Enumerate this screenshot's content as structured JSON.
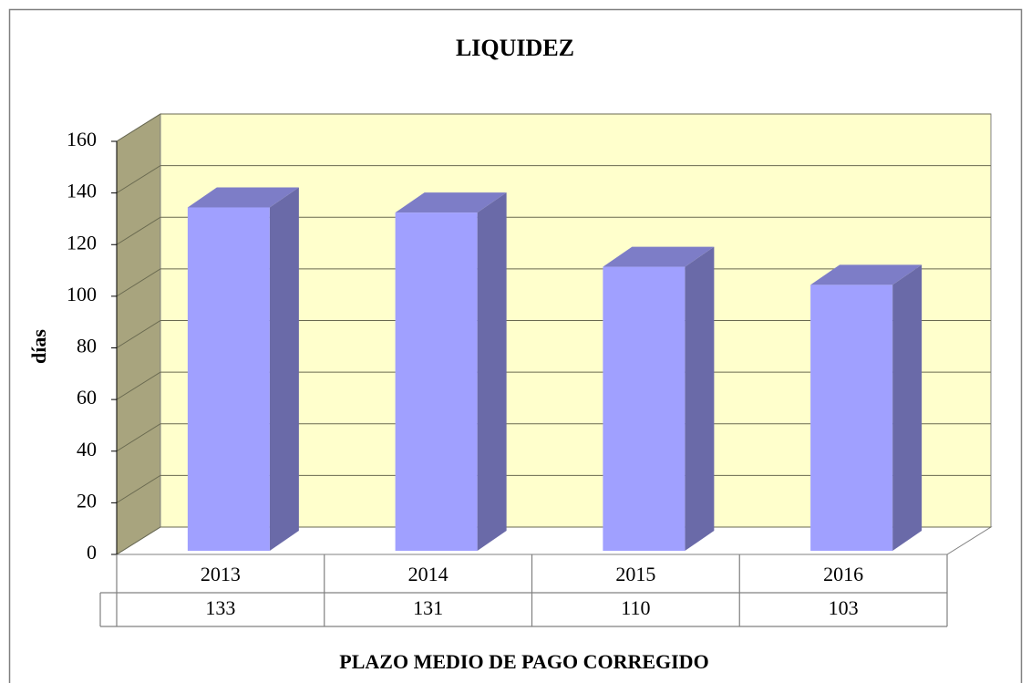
{
  "chart_data": {
    "type": "bar",
    "title": "LIQUIDEZ",
    "y_label": "días",
    "x_label": "PLAZO MEDIO  DE PAGO CORREGIDO",
    "categories": [
      "2013",
      "2014",
      "2015",
      "2016"
    ],
    "values": [
      133,
      131,
      110,
      103
    ],
    "color": "#a0a0ff",
    "ylim": [
      0,
      160
    ],
    "yticks": [
      0,
      20,
      40,
      60,
      80,
      100,
      120,
      140,
      160
    ],
    "grid": true
  }
}
